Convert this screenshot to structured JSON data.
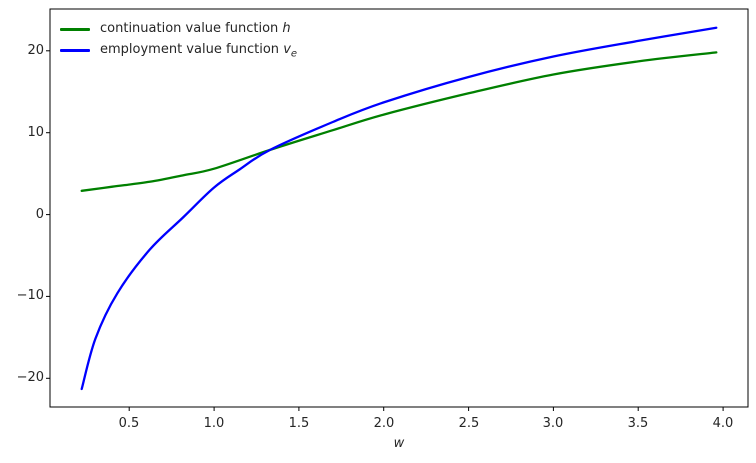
{
  "window": {
    "background": "#ffffff"
  },
  "chart_data": {
    "type": "line",
    "title": "",
    "xlabel": "w",
    "ylabel": "",
    "xlim": [
      0.033,
      4.147
    ],
    "ylim": [
      -23.5,
      25.1
    ],
    "grid": false,
    "legend_position": "upper left",
    "legend_frame": false,
    "x_ticks": [
      0.5,
      1.0,
      1.5,
      2.0,
      2.5,
      3.0,
      3.5,
      4.0
    ],
    "x_tick_labels": [
      "0.5",
      "1.0",
      "1.5",
      "2.0",
      "2.5",
      "3.0",
      "3.5",
      "4.0"
    ],
    "y_ticks": [
      -20,
      -10,
      0,
      10,
      20
    ],
    "y_tick_labels": [
      "−20",
      "−10",
      "0",
      "10",
      "20"
    ],
    "axis_color": "#000000",
    "tick_label_color": "#262626",
    "series": [
      {
        "name": "continuation value function h",
        "label_prefix": "continuation value function ",
        "label_var": "h",
        "label_sub": "",
        "color": "#008000",
        "line_width": 2.3,
        "points": [
          [
            0.22,
            2.9
          ],
          [
            0.4,
            3.4
          ],
          [
            0.62,
            4.0
          ],
          [
            0.82,
            4.8
          ],
          [
            1.0,
            5.6
          ],
          [
            1.33,
            7.9
          ],
          [
            1.7,
            10.3
          ],
          [
            2.0,
            12.2
          ],
          [
            2.5,
            14.8
          ],
          [
            3.0,
            17.1
          ],
          [
            3.5,
            18.7
          ],
          [
            3.96,
            19.8
          ]
        ]
      },
      {
        "name": "employment value function v_e",
        "label_prefix": "employment value function ",
        "label_var": "v",
        "label_sub": "e",
        "color": "#0000ff",
        "line_width": 2.3,
        "points": [
          [
            0.22,
            -21.3
          ],
          [
            0.3,
            -15.2
          ],
          [
            0.43,
            -9.6
          ],
          [
            0.62,
            -4.3
          ],
          [
            0.82,
            -0.3
          ],
          [
            1.0,
            3.3
          ],
          [
            1.15,
            5.5
          ],
          [
            1.33,
            7.9
          ],
          [
            1.7,
            11.3
          ],
          [
            2.0,
            13.7
          ],
          [
            2.5,
            16.8
          ],
          [
            3.0,
            19.3
          ],
          [
            3.5,
            21.2
          ],
          [
            3.96,
            22.8
          ]
        ]
      }
    ]
  }
}
